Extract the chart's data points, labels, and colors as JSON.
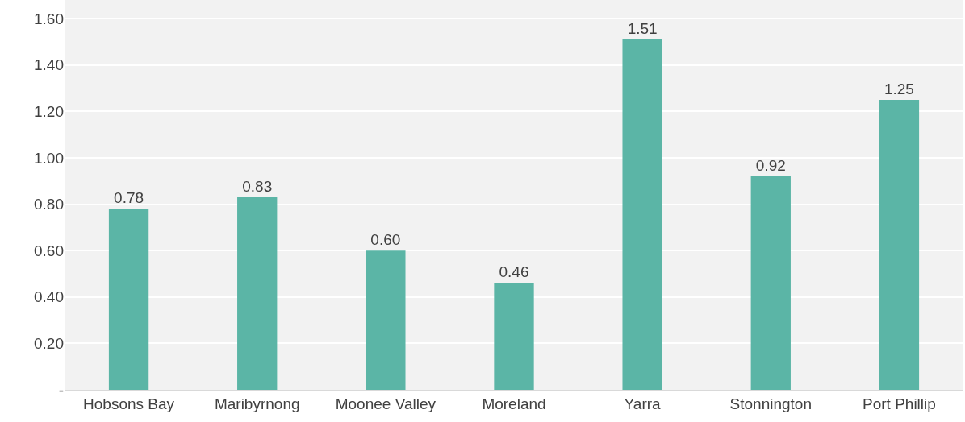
{
  "chart_data": {
    "type": "bar",
    "categories": [
      "Hobsons Bay",
      "Maribyrnong",
      "Moonee Valley",
      "Moreland",
      "Yarra",
      "Stonnington",
      "Port Phillip"
    ],
    "values": [
      0.78,
      0.83,
      0.6,
      0.46,
      1.51,
      0.92,
      1.25
    ],
    "value_labels": [
      "0.78",
      "0.83",
      "0.60",
      "0.46",
      "1.51",
      "0.92",
      "1.25"
    ],
    "color": "#5bb5a6",
    "ylim": [
      0,
      1.68
    ],
    "yticks": [
      {
        "value": 0,
        "label": "-"
      },
      {
        "value": 0.2,
        "label": "0.20"
      },
      {
        "value": 0.4,
        "label": "0.40"
      },
      {
        "value": 0.6,
        "label": "0.60"
      },
      {
        "value": 0.8,
        "label": "0.80"
      },
      {
        "value": 1.0,
        "label": "1.00"
      },
      {
        "value": 1.2,
        "label": "1.20"
      },
      {
        "value": 1.4,
        "label": "1.40"
      },
      {
        "value": 1.6,
        "label": "1.60"
      }
    ],
    "grid": "y"
  }
}
